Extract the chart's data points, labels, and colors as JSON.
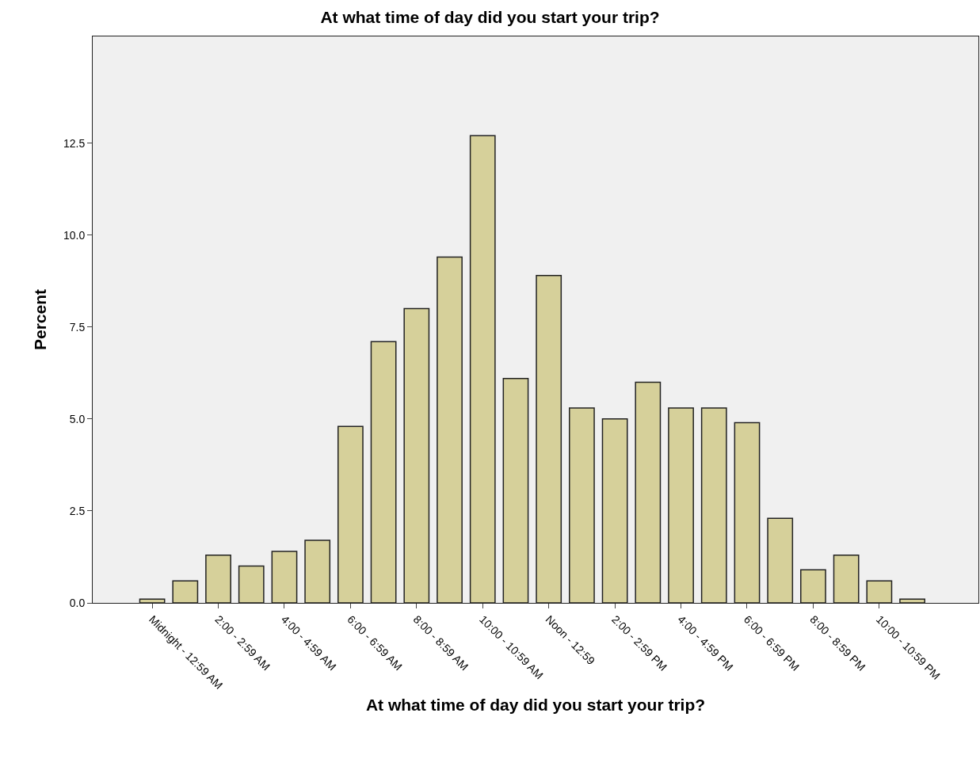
{
  "chart_data": {
    "type": "bar",
    "title": "At what time of day did you start your trip?",
    "xlabel": "At what time of day did you start your trip?",
    "ylabel": "Percent",
    "categories": [
      "Midnight - 12:59 AM",
      null,
      "2:00 - 2:59 AM",
      null,
      "4:00 - 4:59 AM",
      null,
      "6:00 - 6:59 AM",
      null,
      "8:00 - 8:59 AM",
      null,
      "10:00 - 10:59 AM",
      null,
      "Noon - 12:59",
      null,
      "2:00 - 2:59 PM",
      null,
      "4:00 - 4:59 PM",
      null,
      "6:00 - 6:59 PM",
      null,
      "8:00 - 8:59 PM",
      null,
      "10:00 - 10:59 PM",
      null
    ],
    "values": [
      0.1,
      0.6,
      1.3,
      1.0,
      1.4,
      1.7,
      4.8,
      7.1,
      8.0,
      9.4,
      12.7,
      6.1,
      8.9,
      5.3,
      5.0,
      6.0,
      5.3,
      5.3,
      4.9,
      2.3,
      0.9,
      1.3,
      0.6,
      0.1
    ],
    "color": "#d6d09a",
    "ylim": [
      0,
      15.4
    ],
    "yticks": [
      {
        "value": 0,
        "label": "0.0"
      },
      {
        "value": 2.5,
        "label": "2.5"
      },
      {
        "value": 5,
        "label": "5.0"
      },
      {
        "value": 7.5,
        "label": "7.5"
      },
      {
        "value": 10,
        "label": "10.0"
      },
      {
        "value": 12.5,
        "label": "12.5"
      }
    ],
    "grid": false,
    "legend": false
  }
}
